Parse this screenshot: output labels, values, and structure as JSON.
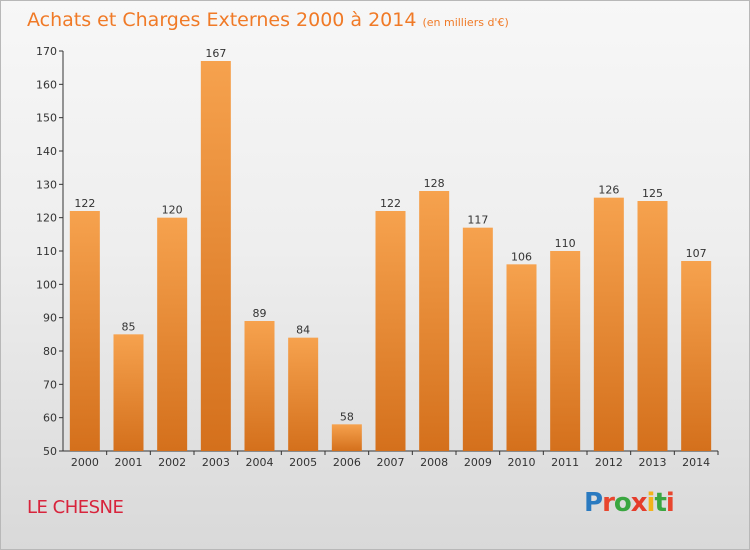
{
  "header": {
    "title": "Achats et Charges Externes 2000 à 2014",
    "subtitle": "(en milliers d'€)"
  },
  "footer": {
    "commune": "LE CHESNE",
    "logo": [
      "P",
      "r",
      "o",
      "x",
      "i",
      "t",
      "i"
    ],
    "logo_colors": [
      "#2a7ac0",
      "#e8462e",
      "#3aa640",
      "#e53c2b",
      "#f3b21a",
      "#3aa640",
      "#e8462e"
    ]
  },
  "colors": {
    "bar_top": "#f6a24e",
    "bar_bottom": "#d4701c",
    "axis": "#333333",
    "grid": "#cccccc",
    "text": "#333333"
  },
  "chart_data": {
    "type": "bar",
    "title": "Achats et Charges Externes 2000 à 2014",
    "subtitle": "(en milliers d'€)",
    "categories": [
      "2000",
      "2001",
      "2002",
      "2003",
      "2004",
      "2005",
      "2006",
      "2007",
      "2008",
      "2009",
      "2010",
      "2011",
      "2012",
      "2013",
      "2014"
    ],
    "values": [
      122,
      85,
      120,
      167,
      89,
      84,
      58,
      122,
      128,
      117,
      106,
      110,
      126,
      125,
      107
    ],
    "ylim": [
      50,
      170
    ],
    "yticks": [
      50,
      60,
      70,
      80,
      90,
      100,
      110,
      120,
      130,
      140,
      150,
      160,
      170
    ],
    "data_labels": true,
    "grid": false,
    "legend": "none"
  }
}
